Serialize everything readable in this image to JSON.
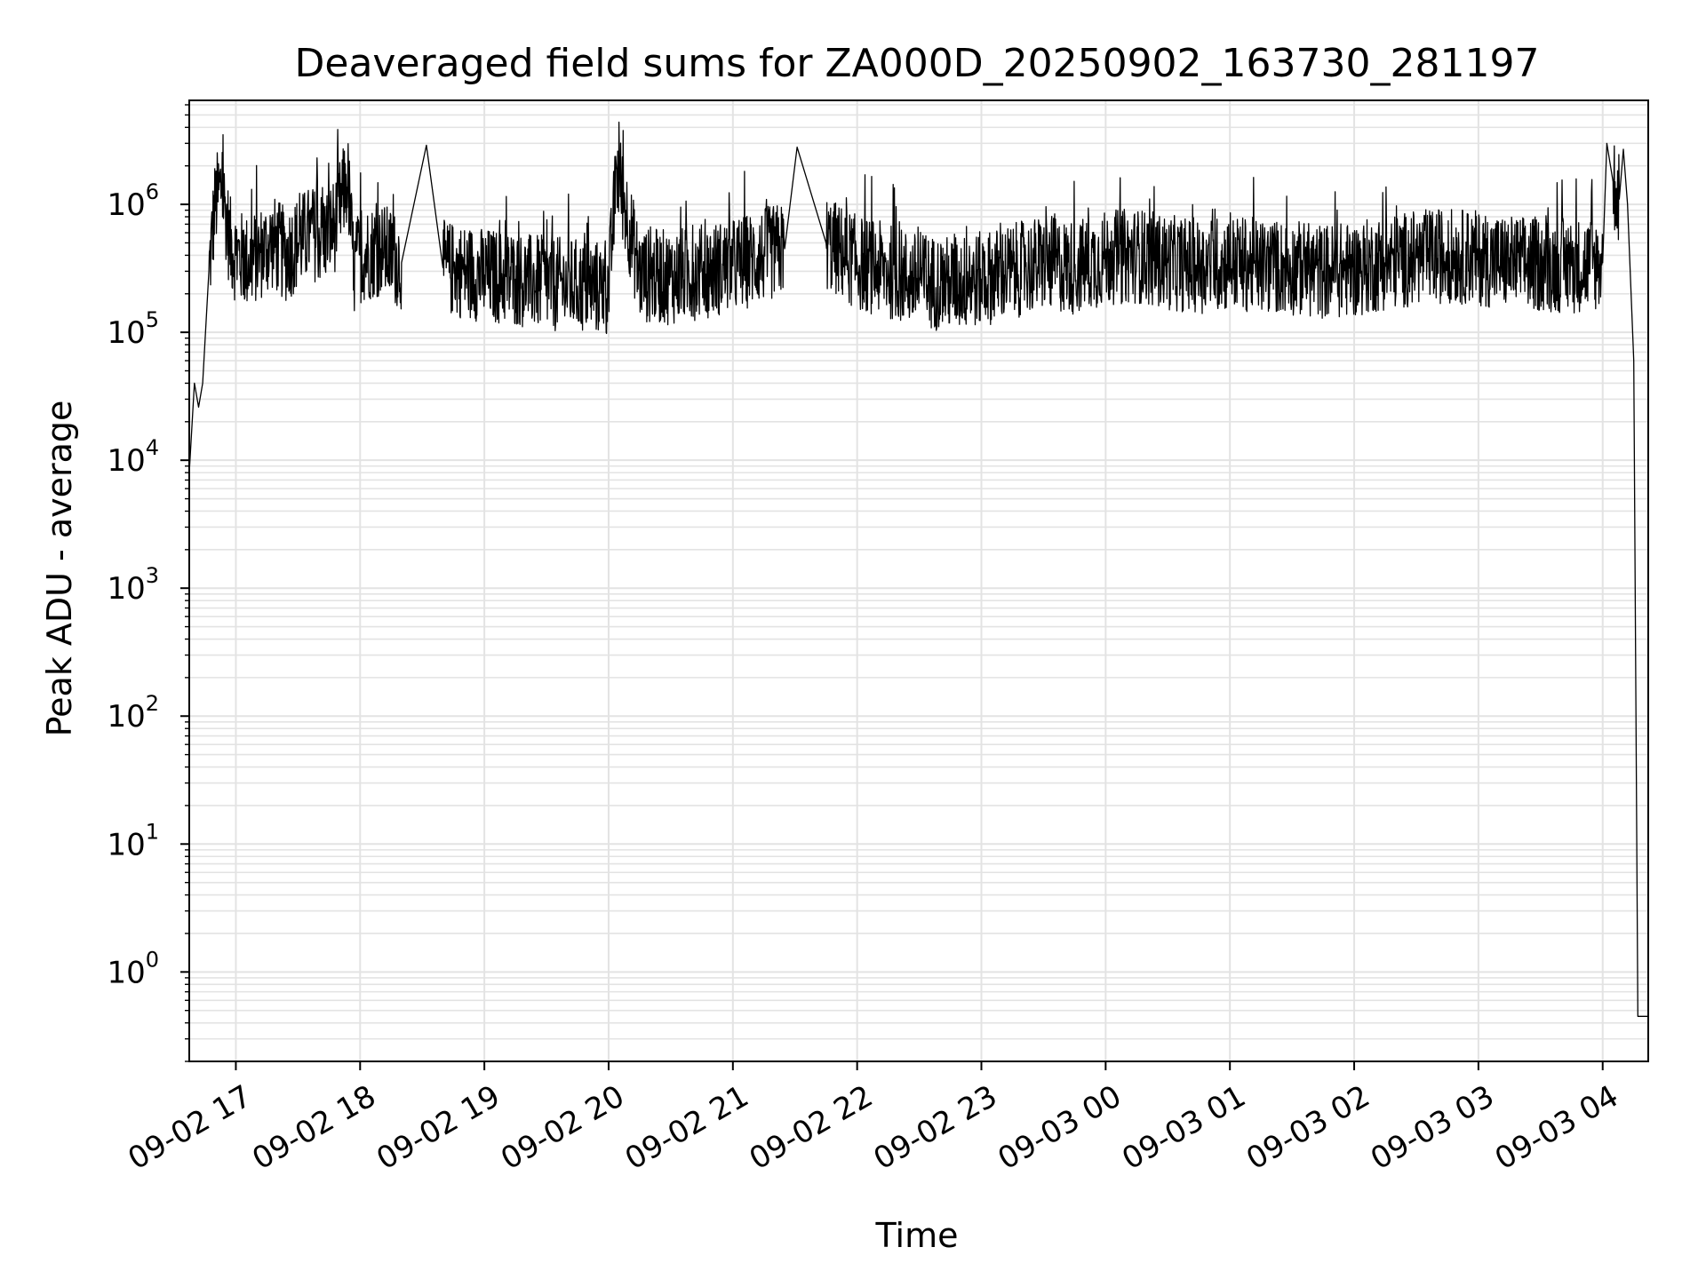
{
  "chart_data": {
    "type": "line",
    "title": "Deaveraged field sums for ZA000D_20250902_163730_281197",
    "xlabel": "Time",
    "ylabel": "Peak ADU - average",
    "yscale": "log",
    "ylim": [
      0.2,
      6500000
    ],
    "xlim": [
      "2025-09-02 16:37:30",
      "2025-09-03 04:22:00"
    ],
    "x_tick_labels": [
      "09-02 17",
      "09-02 18",
      "09-02 19",
      "09-02 20",
      "09-02 21",
      "09-02 22",
      "09-02 23",
      "09-03 00",
      "09-03 01",
      "09-03 02",
      "09-03 03",
      "09-03 04"
    ],
    "y_tick_values": [
      1,
      10,
      100,
      1000,
      10000,
      100000,
      1000000
    ],
    "y_tick_labels": [
      {
        "base": "10",
        "exp": "0"
      },
      {
        "base": "10",
        "exp": "1"
      },
      {
        "base": "10",
        "exp": "2"
      },
      {
        "base": "10",
        "exp": "3"
      },
      {
        "base": "10",
        "exp": "4"
      },
      {
        "base": "10",
        "exp": "5"
      },
      {
        "base": "10",
        "exp": "6"
      }
    ],
    "grid": true,
    "line_color": "#000000",
    "grid_color": "#e3e3e3",
    "series": [
      {
        "x": [
          "2025-09-02 16:37:30",
          "2025-09-02 16:40",
          "2025-09-02 16:42",
          "2025-09-02 16:44",
          "2025-09-02 16:47",
          "2025-09-02 16:50",
          "2025-09-02 16:53",
          "2025-09-02 16:55",
          "2025-09-02 16:57",
          "2025-09-02 17:00",
          "2025-09-02 17:06",
          "2025-09-02 17:12",
          "2025-09-02 17:18",
          "2025-09-02 17:24",
          "2025-09-02 17:30",
          "2025-09-02 17:36",
          "2025-09-02 17:42",
          "2025-09-02 17:48",
          "2025-09-02 17:54",
          "2025-09-02 17:57",
          "2025-09-02 18:00",
          "2025-09-02 18:10",
          "2025-09-02 18:20",
          "2025-09-02 18:32",
          "2025-09-02 18:40",
          "2025-09-02 18:50",
          "2025-09-02 19:00",
          "2025-09-02 19:15",
          "2025-09-02 19:30",
          "2025-09-02 19:45",
          "2025-09-02 20:00",
          "2025-09-02 20:04",
          "2025-09-02 20:15",
          "2025-09-02 20:30",
          "2025-09-02 20:45",
          "2025-09-02 21:00",
          "2025-09-02 21:15",
          "2025-09-02 21:25",
          "2025-09-02 21:31",
          "2025-09-02 21:45",
          "2025-09-02 22:00",
          "2025-09-02 22:15",
          "2025-09-02 22:30",
          "2025-09-02 22:45",
          "2025-09-02 23:00",
          "2025-09-02 23:15",
          "2025-09-02 23:30",
          "2025-09-02 23:45",
          "2025-09-03 00:00",
          "2025-09-03 00:15",
          "2025-09-03 00:30",
          "2025-09-03 00:45",
          "2025-09-03 01:00",
          "2025-09-03 01:15",
          "2025-09-03 01:30",
          "2025-09-03 01:45",
          "2025-09-03 02:00",
          "2025-09-03 02:15",
          "2025-09-03 02:30",
          "2025-09-03 02:45",
          "2025-09-03 03:00",
          "2025-09-03 03:15",
          "2025-09-03 03:30",
          "2025-09-03 03:45",
          "2025-09-03 04:00",
          "2025-09-03 04:02",
          "2025-09-03 04:05",
          "2025-09-03 04:08",
          "2025-09-03 04:10",
          "2025-09-03 04:12",
          "2025-09-03 04:15",
          "2025-09-03 04:17",
          "2025-09-03 04:22"
        ],
        "y": [
          8000,
          40000,
          26000,
          40000,
          300000,
          1000000,
          1400000,
          900000,
          500000,
          400000,
          350000,
          420000,
          500000,
          400000,
          500000,
          600000,
          550000,
          700000,
          1600000,
          300000,
          400000,
          450000,
          350000,
          2900000,
          320000,
          300000,
          280000,
          260000,
          240000,
          230000,
          220000,
          1900000,
          280000,
          270000,
          300000,
          330000,
          400000,
          450000,
          2800000,
          500000,
          350000,
          300000,
          250000,
          240000,
          260000,
          300000,
          350000,
          320000,
          380000,
          400000,
          350000,
          330000,
          350000,
          330000,
          320000,
          300000,
          310000,
          350000,
          380000,
          400000,
          380000,
          350000,
          340000,
          330000,
          350000,
          3000000,
          1500000,
          1100000,
          2700000,
          1000000,
          60000,
          0.45,
          0.45
        ],
        "peaks_note": ""
      }
    ]
  }
}
